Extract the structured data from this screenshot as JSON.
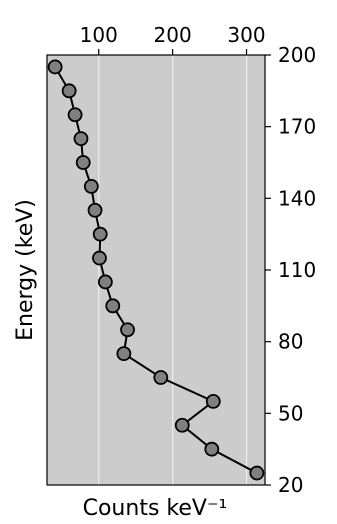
{
  "chart_data": {
    "type": "line",
    "xlabel": "Counts keV⁻¹",
    "ylabel": "Energy (keV)",
    "x_ticks": [
      {
        "value": 100,
        "label": "100"
      },
      {
        "value": 200,
        "label": "200"
      },
      {
        "value": 300,
        "label": "300"
      }
    ],
    "y_ticks": [
      {
        "value": 20,
        "label": "20"
      },
      {
        "value": 50,
        "label": "50"
      },
      {
        "value": 80,
        "label": "80"
      },
      {
        "value": 110,
        "label": "110"
      },
      {
        "value": 140,
        "label": "140"
      },
      {
        "value": 170,
        "label": "170"
      },
      {
        "value": 200,
        "label": "200"
      }
    ],
    "xlim": [
      30,
      325
    ],
    "ylim": [
      20,
      200
    ],
    "grid": "vertical",
    "x_axis_position": "top",
    "y_axis_position": "right",
    "colors": {
      "plot_background": "#cccccc",
      "gridline": "#ebebeb",
      "marker_fill": "#808080",
      "line": "#000000"
    },
    "series": [
      {
        "points": [
          {
            "x": 314,
            "y": 25
          },
          {
            "x": 253,
            "y": 35
          },
          {
            "x": 213,
            "y": 45
          },
          {
            "x": 255,
            "y": 55
          },
          {
            "x": 184,
            "y": 65
          },
          {
            "x": 134,
            "y": 75
          },
          {
            "x": 139,
            "y": 85
          },
          {
            "x": 119,
            "y": 95
          },
          {
            "x": 109,
            "y": 105
          },
          {
            "x": 101,
            "y": 115
          },
          {
            "x": 102,
            "y": 125
          },
          {
            "x": 95,
            "y": 135
          },
          {
            "x": 90,
            "y": 145
          },
          {
            "x": 79,
            "y": 155
          },
          {
            "x": 76,
            "y": 165
          },
          {
            "x": 68,
            "y": 175
          },
          {
            "x": 60,
            "y": 185
          },
          {
            "x": 41,
            "y": 195
          }
        ]
      }
    ]
  }
}
